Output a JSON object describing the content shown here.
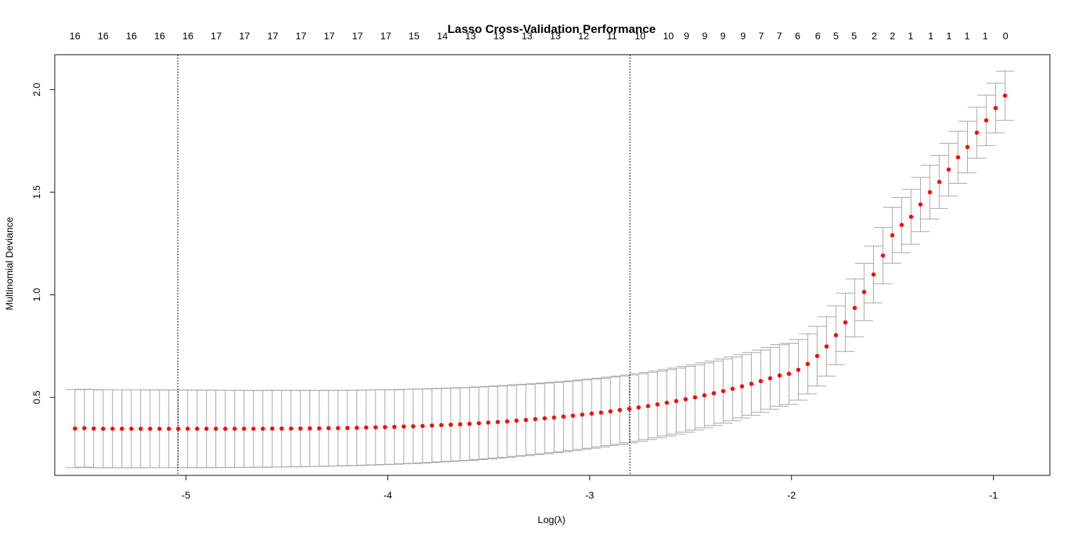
{
  "chart_data": {
    "type": "scatter",
    "title": "Lasso Cross-Validation Performance",
    "xlabel": "Log(λ)",
    "ylabel": "Multinomial Deviance",
    "xlim": [
      -5.65,
      -0.72
    ],
    "ylim": [
      0.12,
      2.17
    ],
    "x_ticks": [
      -5,
      -4,
      -3,
      -2,
      -1
    ],
    "y_ticks": [
      0.5,
      1.0,
      1.5,
      2.0
    ],
    "y_tick_labels": [
      "0.5",
      "1.0",
      "1.5",
      "2.0"
    ],
    "point_color": "#ff0000",
    "errorbar_color": "#a0a0a0",
    "vlines": [
      -5.04,
      -2.8
    ],
    "top_axis_labels": [
      {
        "x": -5.55,
        "label": "16"
      },
      {
        "x": -5.41,
        "label": "16"
      },
      {
        "x": -5.27,
        "label": "16"
      },
      {
        "x": -5.13,
        "label": "16"
      },
      {
        "x": -4.99,
        "label": "16"
      },
      {
        "x": -4.85,
        "label": "17"
      },
      {
        "x": -4.71,
        "label": "17"
      },
      {
        "x": -4.57,
        "label": "17"
      },
      {
        "x": -4.43,
        "label": "17"
      },
      {
        "x": -4.29,
        "label": "17"
      },
      {
        "x": -4.15,
        "label": "17"
      },
      {
        "x": -4.01,
        "label": "17"
      },
      {
        "x": -3.87,
        "label": "15"
      },
      {
        "x": -3.73,
        "label": "14"
      },
      {
        "x": -3.59,
        "label": "13"
      },
      {
        "x": -3.45,
        "label": "13"
      },
      {
        "x": -3.31,
        "label": "13"
      },
      {
        "x": -3.17,
        "label": "13"
      },
      {
        "x": -3.03,
        "label": "12"
      },
      {
        "x": -2.89,
        "label": "11"
      },
      {
        "x": -2.75,
        "label": "10"
      },
      {
        "x": -2.61,
        "label": "10"
      },
      {
        "x": -2.52,
        "label": "9"
      },
      {
        "x": -2.43,
        "label": "9"
      },
      {
        "x": -2.34,
        "label": "9"
      },
      {
        "x": -2.24,
        "label": "9"
      },
      {
        "x": -2.15,
        "label": "7"
      },
      {
        "x": -2.06,
        "label": "7"
      },
      {
        "x": -1.97,
        "label": "6"
      },
      {
        "x": -1.87,
        "label": "6"
      },
      {
        "x": -1.78,
        "label": "5"
      },
      {
        "x": -1.69,
        "label": "5"
      },
      {
        "x": -1.59,
        "label": "2"
      },
      {
        "x": -1.5,
        "label": "2"
      },
      {
        "x": -1.41,
        "label": "1"
      },
      {
        "x": -1.31,
        "label": "1"
      },
      {
        "x": -1.22,
        "label": "1"
      },
      {
        "x": -1.13,
        "label": "1"
      },
      {
        "x": -1.04,
        "label": "1"
      },
      {
        "x": -0.94,
        "label": "0"
      }
    ],
    "x_start": -5.55,
    "x_step": 0.04654,
    "n_points": 100,
    "values": [
      0.348,
      0.35,
      0.348,
      0.347,
      0.347,
      0.347,
      0.347,
      0.347,
      0.347,
      0.347,
      0.347,
      0.347,
      0.347,
      0.347,
      0.347,
      0.347,
      0.347,
      0.347,
      0.347,
      0.347,
      0.347,
      0.348,
      0.348,
      0.348,
      0.348,
      0.349,
      0.349,
      0.35,
      0.35,
      0.351,
      0.352,
      0.353,
      0.354,
      0.355,
      0.356,
      0.358,
      0.359,
      0.361,
      0.363,
      0.365,
      0.367,
      0.369,
      0.371,
      0.374,
      0.377,
      0.38,
      0.383,
      0.387,
      0.39,
      0.394,
      0.398,
      0.402,
      0.406,
      0.411,
      0.416,
      0.421,
      0.426,
      0.432,
      0.438,
      0.444,
      0.451,
      0.458,
      0.466,
      0.474,
      0.482,
      0.491,
      0.5,
      0.51,
      0.52,
      0.531,
      0.542,
      0.554,
      0.566,
      0.579,
      0.593,
      0.607,
      0.622,
      0.637,
      0.653,
      0.67,
      0.688,
      0.706,
      0.726,
      0.746,
      0.767,
      0.789,
      0.812,
      0.836,
      0.862,
      0.888,
      0.916,
      0.945,
      0.976,
      1.008,
      1.042,
      1.078,
      1.116,
      1.156,
      1.198,
      1.243
    ],
    "tail_values": [
      1.29,
      1.34,
      1.38,
      1.44,
      1.5,
      1.55,
      1.61,
      1.67,
      1.72,
      1.79,
      1.85,
      1.91,
      1.97
    ],
    "se": 0.19,
    "se_tail": 0.12
  }
}
